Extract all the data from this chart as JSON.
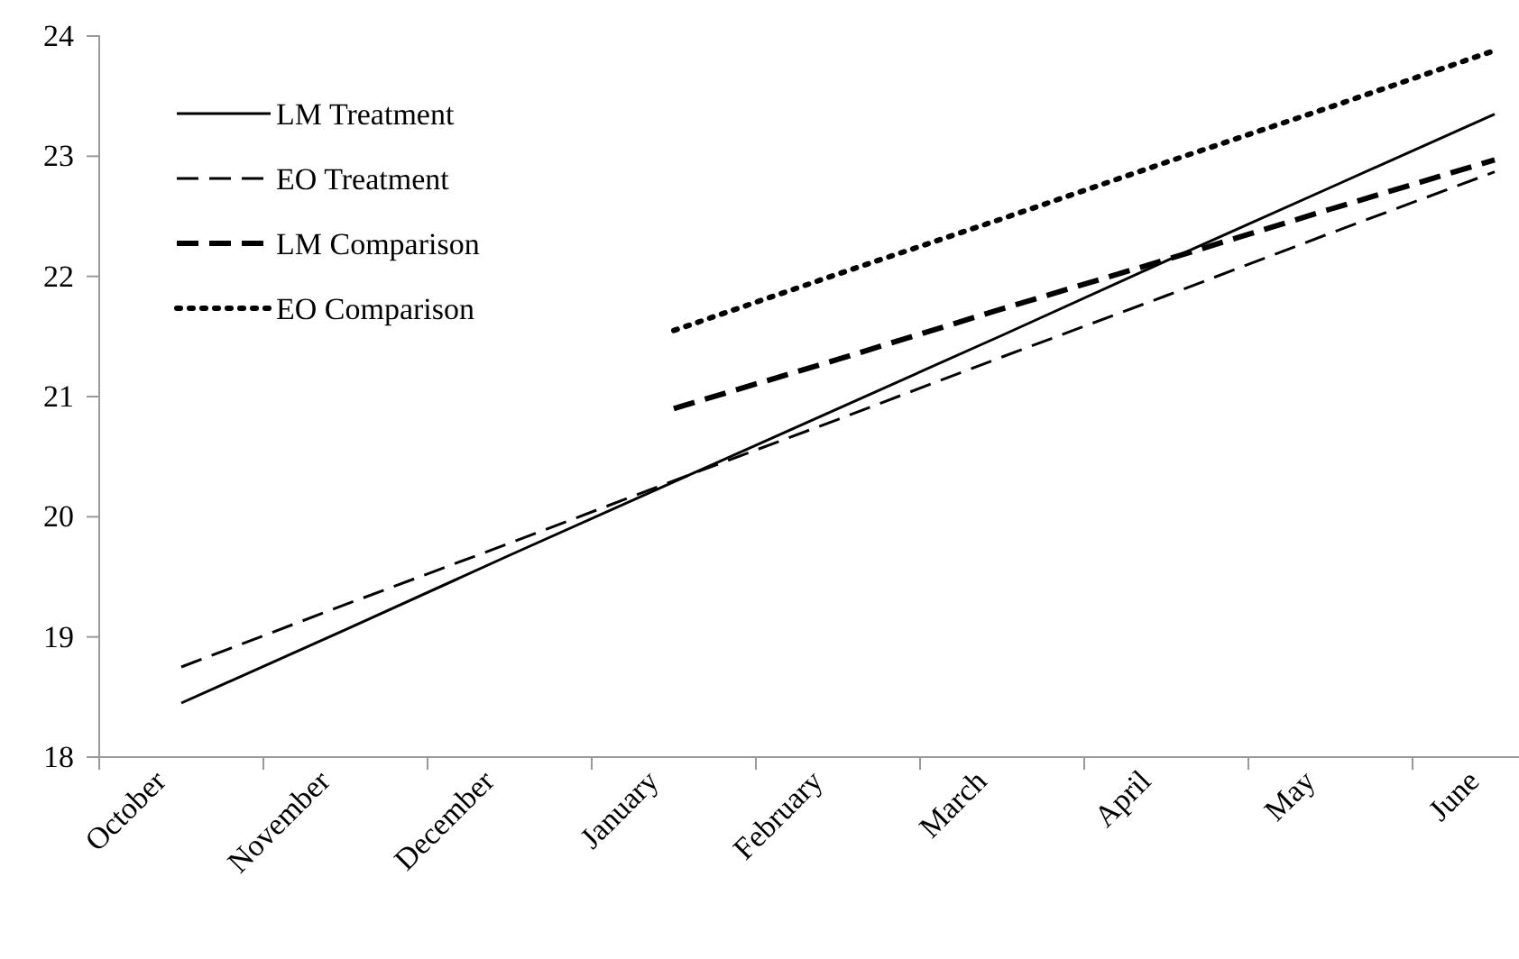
{
  "chart_data": {
    "type": "line",
    "categories": [
      "October",
      "November",
      "December",
      "January",
      "February",
      "March",
      "April",
      "May",
      "June"
    ],
    "series": [
      {
        "name": "LM Treatment",
        "color": "#000000",
        "line_style": "solid",
        "values": [
          18.45,
          19.06,
          19.68,
          20.29,
          20.9,
          21.51,
          22.13,
          22.74,
          23.35
        ]
      },
      {
        "name": "EO Treatment",
        "color": "#000000",
        "line_style": "dashed",
        "values": [
          18.75,
          19.27,
          19.78,
          20.3,
          20.81,
          21.33,
          21.84,
          22.36,
          22.87
        ]
      },
      {
        "name": "LM Comparison",
        "color": "#000000",
        "line_style": "dashed",
        "values": [
          null,
          null,
          null,
          20.9,
          21.31,
          21.73,
          22.14,
          22.56,
          22.97
        ]
      },
      {
        "name": "EO Comparison",
        "color": "#000000",
        "line_style": "dotted",
        "values": [
          null,
          null,
          null,
          21.55,
          22.02,
          22.48,
          22.95,
          23.41,
          23.88
        ]
      }
    ],
    "ylim": [
      18,
      24
    ],
    "yticks": [
      18,
      19,
      20,
      21,
      22,
      23,
      24
    ],
    "grid": false,
    "legend": "top left",
    "marker": "none"
  }
}
